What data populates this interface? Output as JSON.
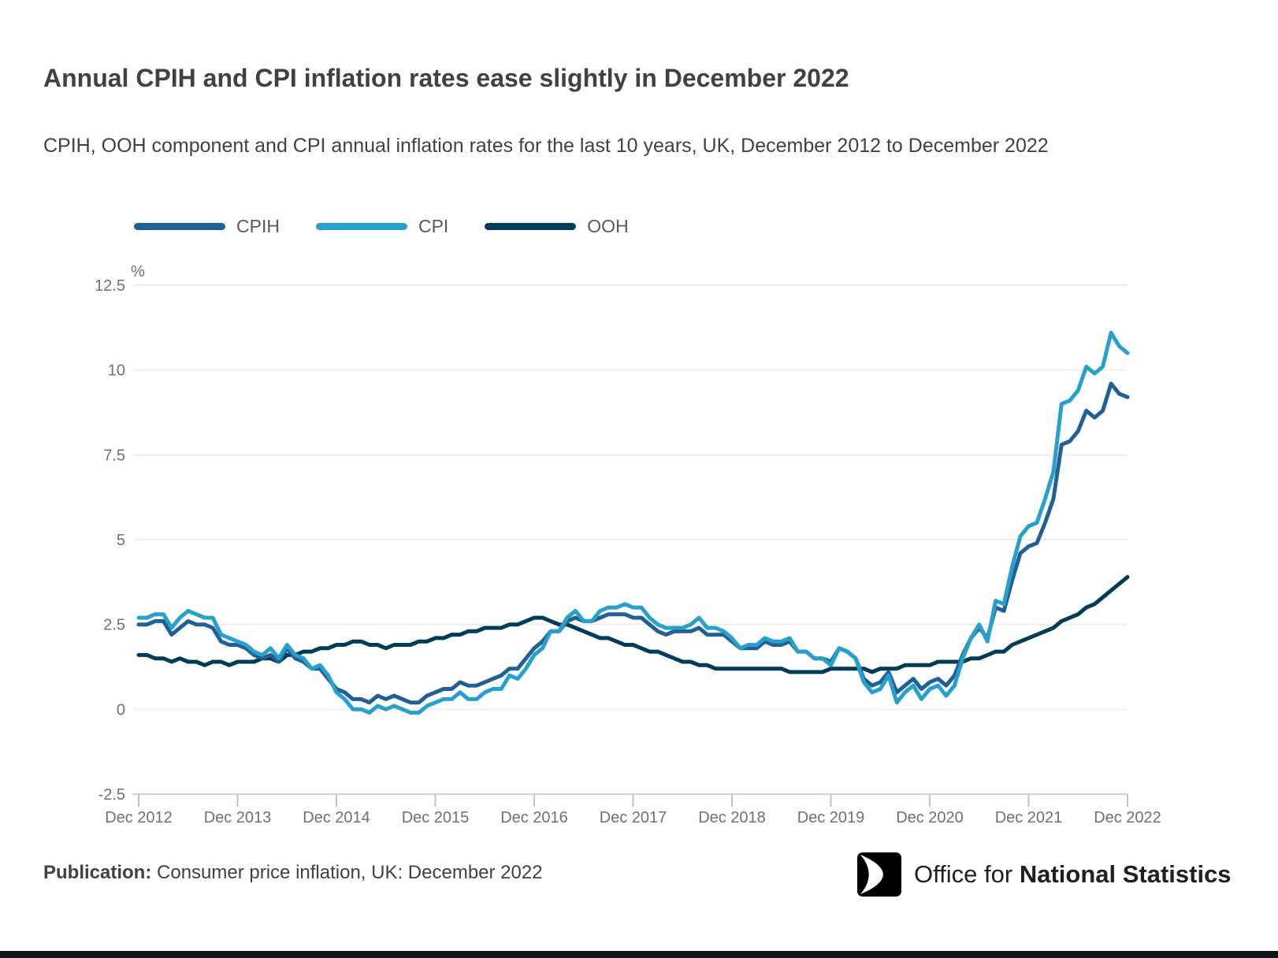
{
  "header": {
    "title": "Annual CPIH and CPI inflation rates ease slightly in December 2022",
    "subtitle": "CPIH, OOH component and CPI annual inflation rates for the last 10 years, UK, December 2012 to December 2022"
  },
  "chart_data": {
    "type": "line",
    "unit_label": "%",
    "grid": "horizontal",
    "legend_position": "top",
    "x_frequency": "monthly",
    "x_start": "Dec 2012",
    "x_end": "Dec 2022",
    "x_point_count": 121,
    "x_tick_labels": [
      "Dec 2012",
      "Dec 2013",
      "Dec 2014",
      "Dec 2015",
      "Dec 2016",
      "Dec 2017",
      "Dec 2018",
      "Dec 2019",
      "Dec 2020",
      "Dec 2021",
      "Dec 2022"
    ],
    "y_ticks": [
      12.5,
      10,
      7.5,
      5,
      2.5,
      0,
      -2.5
    ],
    "y_tick_labels": [
      "12.5",
      "10",
      "7.5",
      "5",
      "2.5",
      "0",
      "-2.5"
    ],
    "ylim": [
      -2.5,
      12.7
    ],
    "draw_order": [
      "OOH",
      "CPIH",
      "CPI"
    ],
    "series": [
      {
        "name": "CPIH",
        "color": "#206095",
        "values": [
          2.5,
          2.5,
          2.6,
          2.6,
          2.2,
          2.4,
          2.6,
          2.5,
          2.5,
          2.4,
          2.0,
          1.9,
          1.9,
          1.8,
          1.6,
          1.5,
          1.6,
          1.4,
          1.8,
          1.5,
          1.4,
          1.2,
          1.2,
          0.9,
          0.6,
          0.5,
          0.3,
          0.3,
          0.2,
          0.4,
          0.3,
          0.4,
          0.3,
          0.2,
          0.2,
          0.4,
          0.5,
          0.6,
          0.6,
          0.8,
          0.7,
          0.7,
          0.8,
          0.9,
          1.0,
          1.2,
          1.2,
          1.5,
          1.8,
          2.0,
          2.3,
          2.3,
          2.6,
          2.7,
          2.6,
          2.6,
          2.7,
          2.8,
          2.8,
          2.8,
          2.7,
          2.7,
          2.5,
          2.3,
          2.2,
          2.3,
          2.3,
          2.3,
          2.4,
          2.2,
          2.2,
          2.2,
          2.0,
          1.8,
          1.8,
          1.8,
          2.0,
          1.9,
          1.9,
          2.0,
          1.7,
          1.7,
          1.5,
          1.5,
          1.4,
          1.8,
          1.7,
          1.5,
          0.9,
          0.7,
          0.8,
          1.1,
          0.5,
          0.7,
          0.9,
          0.6,
          0.8,
          0.9,
          0.7,
          1.0,
          1.6,
          2.1,
          2.4,
          2.1,
          3.0,
          2.9,
          3.8,
          4.6,
          4.8,
          4.9,
          5.5,
          6.2,
          7.8,
          7.9,
          8.2,
          8.8,
          8.6,
          8.8,
          9.6,
          9.3,
          9.2
        ]
      },
      {
        "name": "CPI",
        "color": "#27A0CC",
        "values": [
          2.7,
          2.7,
          2.8,
          2.8,
          2.4,
          2.7,
          2.9,
          2.8,
          2.7,
          2.7,
          2.2,
          2.1,
          2.0,
          1.9,
          1.7,
          1.6,
          1.8,
          1.5,
          1.9,
          1.6,
          1.5,
          1.2,
          1.3,
          1.0,
          0.5,
          0.3,
          0.0,
          0.0,
          -0.1,
          0.1,
          0.0,
          0.1,
          0.0,
          -0.1,
          -0.1,
          0.1,
          0.2,
          0.3,
          0.3,
          0.5,
          0.3,
          0.3,
          0.5,
          0.6,
          0.6,
          1.0,
          0.9,
          1.2,
          1.6,
          1.8,
          2.3,
          2.3,
          2.7,
          2.9,
          2.6,
          2.6,
          2.9,
          3.0,
          3.0,
          3.1,
          3.0,
          3.0,
          2.7,
          2.5,
          2.4,
          2.4,
          2.4,
          2.5,
          2.7,
          2.4,
          2.4,
          2.3,
          2.1,
          1.8,
          1.9,
          1.9,
          2.1,
          2.0,
          2.0,
          2.1,
          1.7,
          1.7,
          1.5,
          1.5,
          1.3,
          1.8,
          1.7,
          1.5,
          0.8,
          0.5,
          0.6,
          1.0,
          0.2,
          0.5,
          0.7,
          0.3,
          0.6,
          0.7,
          0.4,
          0.7,
          1.5,
          2.1,
          2.5,
          2.0,
          3.2,
          3.1,
          4.2,
          5.1,
          5.4,
          5.5,
          6.2,
          7.0,
          9.0,
          9.1,
          9.4,
          10.1,
          9.9,
          10.1,
          11.1,
          10.7,
          10.5
        ]
      },
      {
        "name": "OOH",
        "color": "#003C57",
        "values": [
          1.6,
          1.6,
          1.5,
          1.5,
          1.4,
          1.5,
          1.4,
          1.4,
          1.3,
          1.4,
          1.4,
          1.3,
          1.4,
          1.4,
          1.4,
          1.5,
          1.5,
          1.4,
          1.6,
          1.6,
          1.7,
          1.7,
          1.8,
          1.8,
          1.9,
          1.9,
          2.0,
          2.0,
          1.9,
          1.9,
          1.8,
          1.9,
          1.9,
          1.9,
          2.0,
          2.0,
          2.1,
          2.1,
          2.2,
          2.2,
          2.3,
          2.3,
          2.4,
          2.4,
          2.4,
          2.5,
          2.5,
          2.6,
          2.7,
          2.7,
          2.6,
          2.5,
          2.5,
          2.4,
          2.3,
          2.2,
          2.1,
          2.1,
          2.0,
          1.9,
          1.9,
          1.8,
          1.7,
          1.7,
          1.6,
          1.5,
          1.4,
          1.4,
          1.3,
          1.3,
          1.2,
          1.2,
          1.2,
          1.2,
          1.2,
          1.2,
          1.2,
          1.2,
          1.2,
          1.1,
          1.1,
          1.1,
          1.1,
          1.1,
          1.2,
          1.2,
          1.2,
          1.2,
          1.2,
          1.1,
          1.2,
          1.2,
          1.2,
          1.3,
          1.3,
          1.3,
          1.3,
          1.4,
          1.4,
          1.4,
          1.4,
          1.5,
          1.5,
          1.6,
          1.7,
          1.7,
          1.9,
          2.0,
          2.1,
          2.2,
          2.3,
          2.4,
          2.6,
          2.7,
          2.8,
          3.0,
          3.1,
          3.3,
          3.5,
          3.7,
          3.9
        ]
      }
    ]
  },
  "footer": {
    "publication_label": "Publication:",
    "publication_text": " Consumer price inflation, UK: December 2022",
    "logo_text_regular": "Office for ",
    "logo_text_bold": "National Statistics"
  },
  "colors": {
    "title_text": "#414042",
    "tick_label": "#707071",
    "gridline": "#ededed",
    "axis_line": "#ccd3e4",
    "axis_tick": "#b9c2da",
    "bottom_bar": "#11151c",
    "logo_black": "#000000"
  }
}
